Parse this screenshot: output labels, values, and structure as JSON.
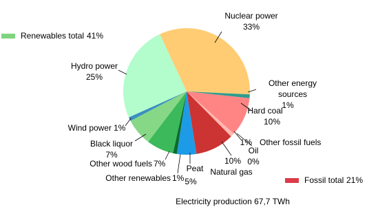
{
  "chart_data": {
    "type": "pie",
    "caption": "Electricity production 67,7 TWh",
    "categories": [
      "Nuclear power",
      "Other energy sources",
      "Hard coal",
      "Other fossil fuels",
      "Oil",
      "Natural gas",
      "Peat",
      "Other renewables",
      "Other wood fuels",
      "Black liquor",
      "Wind power",
      "Hydro power"
    ],
    "values": [
      33,
      1,
      10,
      1,
      0,
      10,
      5,
      1,
      7,
      7,
      1,
      25
    ],
    "value_labels": [
      "33%",
      "1%",
      "10%",
      "1%",
      "0%",
      "10%",
      "5%",
      "1%",
      "7%",
      "7%",
      "1%",
      "25%"
    ],
    "colors": [
      "#ffcc73",
      "#2f9c8f",
      "#ff8585",
      "#ffb8b0",
      "#cc2b2b",
      "#cc3333",
      "#1e9be6",
      "#0b6b2e",
      "#3cb95a",
      "#86d886",
      "#3a8fc0",
      "#b3fccc"
    ],
    "groups": [
      {
        "name": "Renewables total",
        "value": 41,
        "value_label": "41%",
        "color": "#7fd47f"
      },
      {
        "name": "Fossil total",
        "value": 21,
        "value_label": "21%",
        "color": "#dd3b4a"
      }
    ]
  }
}
